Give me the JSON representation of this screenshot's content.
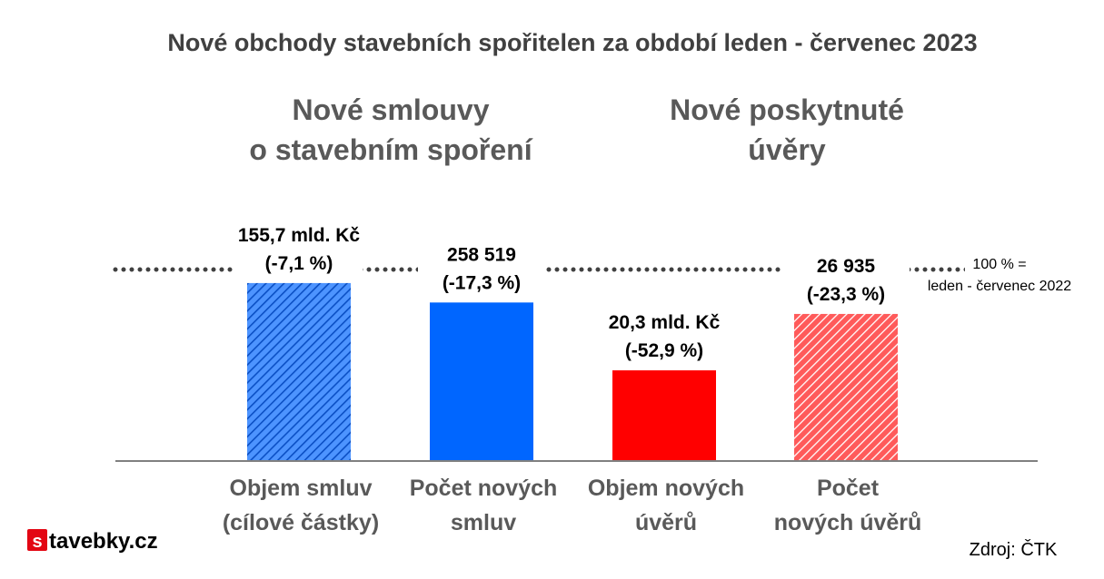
{
  "title": "Nové obchody stavebních spořitelen za období leden - červenec 2023",
  "groups": [
    {
      "lines": [
        "Nové smlouvy",
        "o stavebním spoření"
      ]
    },
    {
      "lines": [
        "Nové poskytnuté",
        "úvěry"
      ]
    }
  ],
  "reference_note": [
    "100 % =",
    "leden - červenec 2022"
  ],
  "source": "Zdroj: ČTK",
  "logo": {
    "mark": "s",
    "text": "tavebky.cz"
  },
  "colors": {
    "blue": "#0066ff",
    "red": "#ff0000",
    "gray_text": "#595959"
  },
  "chart_data": {
    "type": "bar",
    "title": "Nové obchody stavebních spořitelen za období leden - červenec 2023",
    "reference_line": {
      "value": 100,
      "style": "dotted"
    },
    "ylim": [
      0,
      100
    ],
    "grid": false,
    "categories": [
      [
        "Objem smluv",
        "(cílové částky)"
      ],
      [
        "Počet  nových",
        "smluv"
      ],
      [
        "Objem nových",
        "úvěrů"
      ],
      [
        "Počet",
        "nových úvěrů"
      ]
    ],
    "values": [
      92.9,
      82.7,
      47.1,
      76.7
    ],
    "data_labels": [
      [
        "155,7 mld. Kč",
        "(-7,1 %)"
      ],
      [
        "258 519",
        "(-17,3 %)"
      ],
      [
        "20,3 mld. Kč",
        "(-52,9 %)"
      ],
      [
        "26 935",
        "(-23,3 %)"
      ]
    ],
    "fills": [
      "blue-hatched",
      "blue",
      "red",
      "red-hatched"
    ]
  }
}
